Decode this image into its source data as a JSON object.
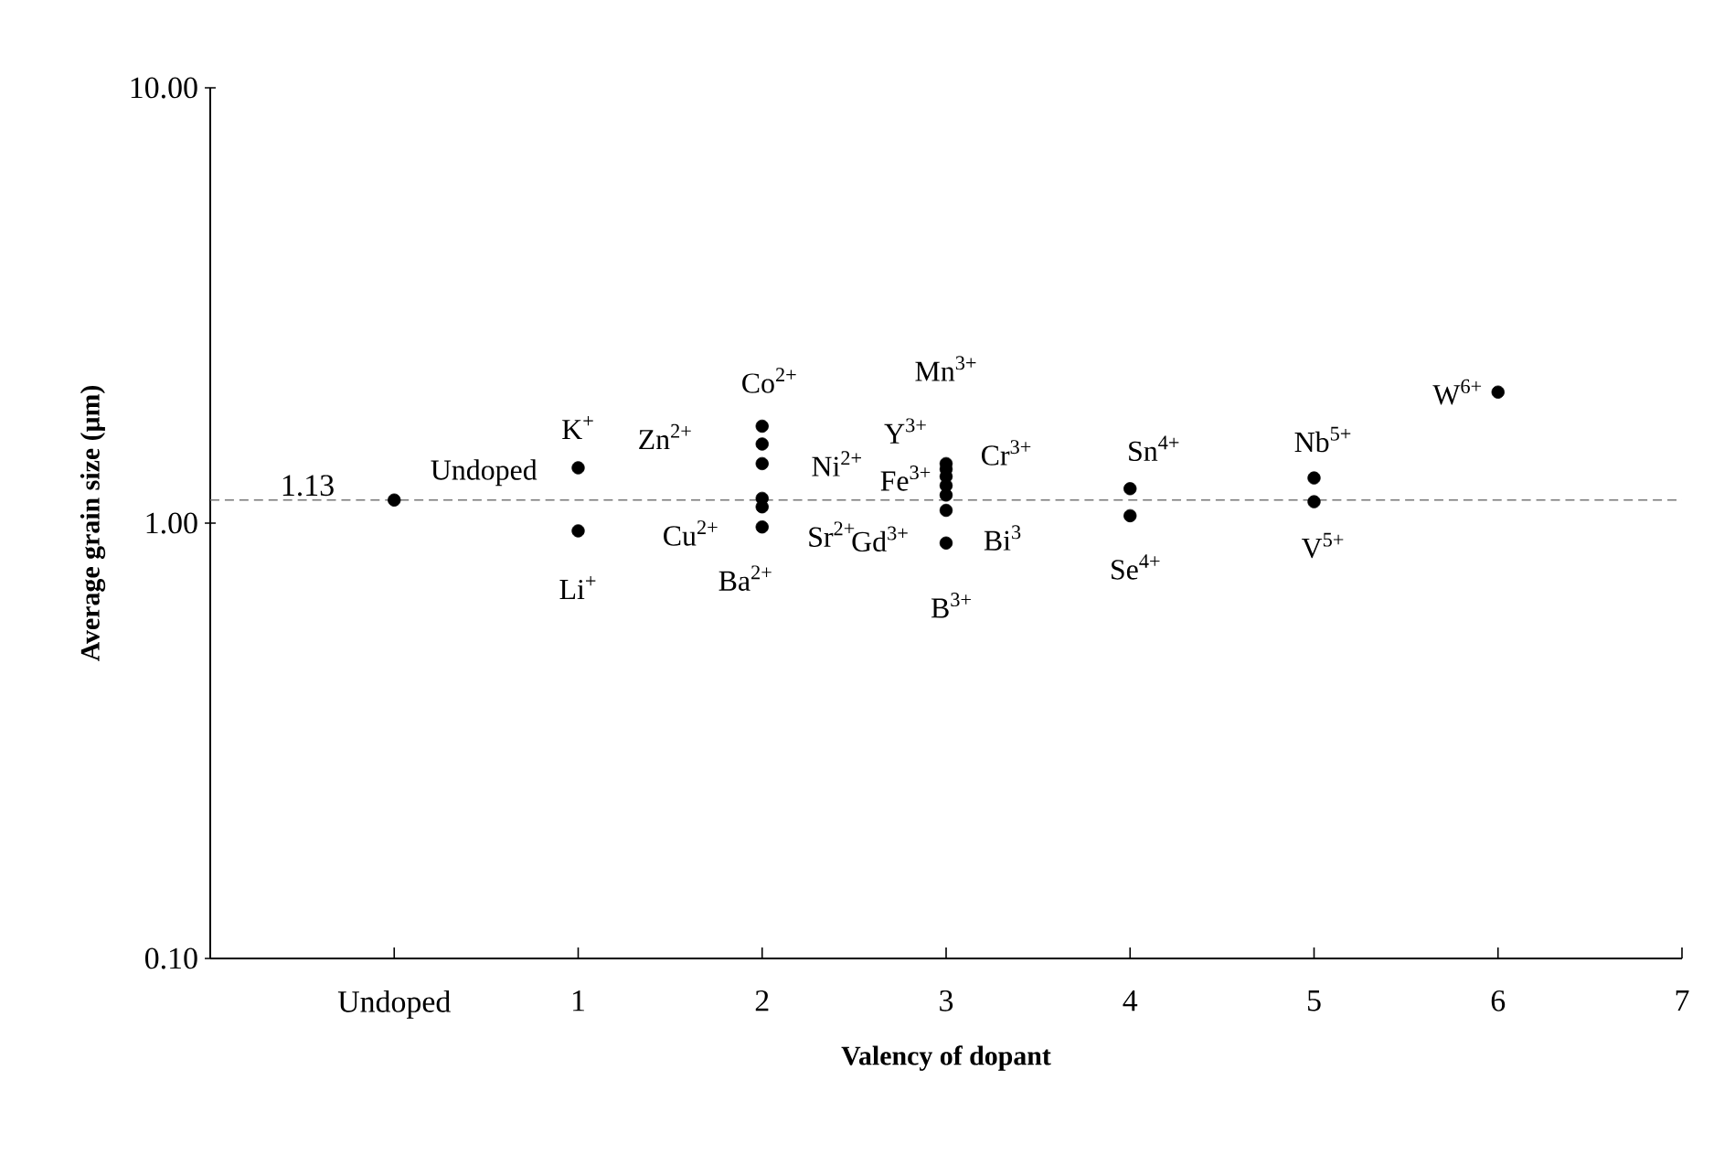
{
  "chart_data": {
    "type": "scatter",
    "xlabel": "Valency of dopant",
    "ylabel": "Average grain size (μm)",
    "log": "y",
    "marker": "circle",
    "grid": false,
    "xlim": [
      -1,
      7
    ],
    "xticks": [
      {
        "value": 0,
        "label": "Undoped"
      },
      1,
      2,
      3,
      4,
      5,
      6,
      7
    ],
    "ylim": [
      0.1,
      10
    ],
    "yticks": [
      {
        "value": 0.1,
        "label": "0.10"
      },
      {
        "value": 1,
        "label": "1.00"
      },
      {
        "value": 10,
        "label": "10.00"
      }
    ],
    "series": [
      {
        "color": "#000000",
        "x": [
          0,
          1,
          1,
          2,
          2,
          2,
          2,
          2,
          2,
          3,
          3,
          3,
          3,
          3,
          3,
          3,
          4,
          4,
          5,
          5,
          6
        ],
        "values": [
          1.13,
          1.34,
          0.96,
          1.67,
          1.52,
          1.37,
          1.14,
          1.09,
          0.98,
          1.37,
          1.33,
          1.28,
          1.22,
          1.16,
          1.07,
          0.9,
          1.2,
          1.04,
          1.27,
          1.12,
          2.0
        ]
      }
    ],
    "ref_lines": [
      {
        "axis": "y",
        "value": 1.13,
        "label": "1.13",
        "color": "#777777",
        "line_style": "dashed"
      }
    ],
    "annotations": [
      {
        "text": "Undoped",
        "x": 0,
        "y": 1.13
      },
      {
        "text": "K$^{+}$",
        "x": 1,
        "y": 1.34
      },
      {
        "text": "Li$^{+}$",
        "x": 1,
        "y": 0.96
      },
      {
        "text": "Co$^{2+}$",
        "x": 2,
        "y": 1.67
      },
      {
        "text": "Zn$^{2+}$",
        "x": 2,
        "y": 1.52
      },
      {
        "text": "Ni$^{2+}$",
        "x": 2,
        "y": 1.37
      },
      {
        "text": "Cu$^{2+}$",
        "x": 2,
        "y": 1.14
      },
      {
        "text": "Sr$^{2+}$",
        "x": 2,
        "y": 1.09
      },
      {
        "text": "Ba$^{2+}$",
        "x": 2,
        "y": 0.98
      },
      {
        "text": "Mn$^{3+}$",
        "x": 3,
        "y": 1.37
      },
      {
        "text": "Y$^{3+}$",
        "x": 3,
        "y": 1.33
      },
      {
        "text": "Cr$^{3+}$",
        "x": 3,
        "y": 1.28
      },
      {
        "text": "Fe$^{3+}$",
        "x": 3,
        "y": 1.22
      },
      {
        "text": "Gd$^{3+}$",
        "x": 3,
        "y": 1.16
      },
      {
        "text": "Bi$^{3}$",
        "x": 3,
        "y": 1.07
      },
      {
        "text": "B$^{3+}$",
        "x": 3,
        "y": 0.9
      },
      {
        "text": "Sn$^{4+}$",
        "x": 4,
        "y": 1.2
      },
      {
        "text": "Se$^{4+}$",
        "x": 4,
        "y": 1.04
      },
      {
        "text": "Nb$^{5+}$",
        "x": 5,
        "y": 1.27
      },
      {
        "text": "V$^{5+}$",
        "x": 5,
        "y": 1.12
      },
      {
        "text": "W$^{6+}$",
        "x": 6,
        "y": 2.0
      }
    ]
  }
}
